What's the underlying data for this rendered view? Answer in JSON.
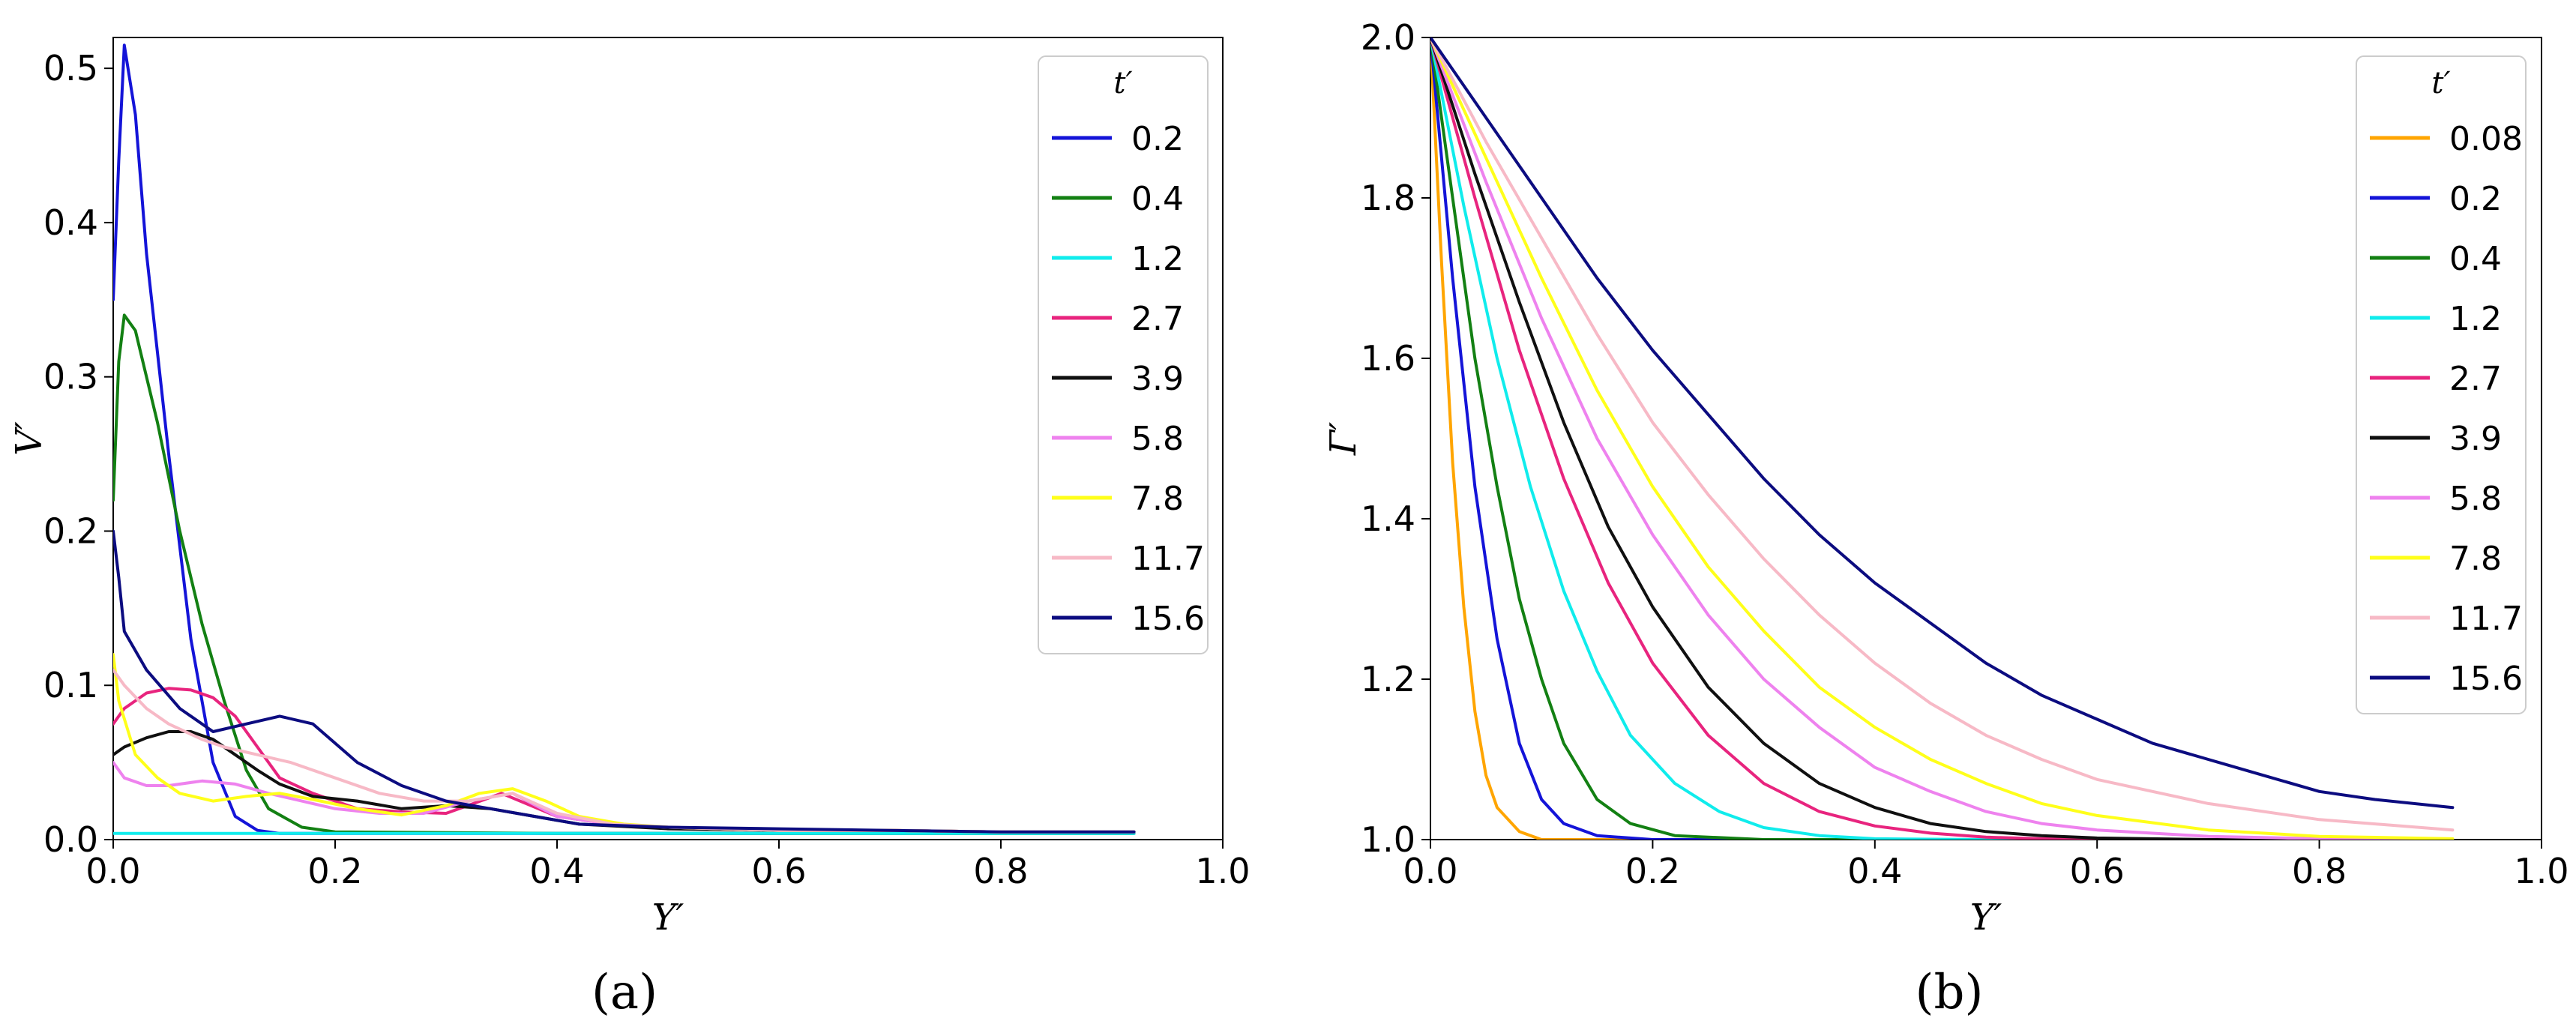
{
  "figure": {
    "panel_labels": {
      "a": "(a)",
      "b": "(b)"
    }
  },
  "chart_data": [
    {
      "type": "line",
      "panel": "(a)",
      "xlabel": "Y′",
      "ylabel": "V′",
      "xlim": [
        0.0,
        1.0
      ],
      "ylim": [
        0.0,
        0.52
      ],
      "xticks": [
        "0.0",
        "0.2",
        "0.4",
        "0.6",
        "0.8",
        "1.0"
      ],
      "xtick_values": [
        0.0,
        0.2,
        0.4,
        0.6,
        0.8,
        1.0
      ],
      "yticks": [
        "0.0",
        "0.1",
        "0.2",
        "0.3",
        "0.4",
        "0.5"
      ],
      "ytick_values": [
        0.0,
        0.1,
        0.2,
        0.3,
        0.4,
        0.5
      ],
      "grid": false,
      "legend": {
        "title": "t′",
        "placement": "top-right"
      },
      "series": [
        {
          "name": "0.2",
          "color": "#1414d8",
          "x": [
            0.0,
            0.005,
            0.01,
            0.02,
            0.03,
            0.05,
            0.07,
            0.09,
            0.11,
            0.13,
            0.15,
            0.2,
            0.4,
            0.6,
            0.8,
            0.92
          ],
          "y": [
            0.35,
            0.44,
            0.515,
            0.47,
            0.38,
            0.25,
            0.13,
            0.05,
            0.015,
            0.006,
            0.004,
            0.004,
            0.004,
            0.004,
            0.004,
            0.004
          ]
        },
        {
          "name": "0.4",
          "color": "#138013",
          "x": [
            0.0,
            0.005,
            0.01,
            0.02,
            0.04,
            0.06,
            0.08,
            0.1,
            0.12,
            0.14,
            0.17,
            0.2,
            0.4,
            0.6,
            0.8,
            0.92
          ],
          "y": [
            0.22,
            0.31,
            0.34,
            0.33,
            0.27,
            0.2,
            0.14,
            0.09,
            0.045,
            0.02,
            0.008,
            0.005,
            0.004,
            0.004,
            0.004,
            0.004
          ]
        },
        {
          "name": "1.2",
          "color": "#10ecec",
          "x": [
            0.0,
            0.1,
            0.3,
            0.5,
            0.7,
            0.92
          ],
          "y": [
            0.004,
            0.004,
            0.004,
            0.004,
            0.004,
            0.004
          ]
        },
        {
          "name": "2.7",
          "color": "#e8247e",
          "x": [
            0.0,
            0.01,
            0.03,
            0.05,
            0.07,
            0.09,
            0.11,
            0.13,
            0.15,
            0.18,
            0.22,
            0.26,
            0.3,
            0.35,
            0.4,
            0.45,
            0.5,
            0.6,
            0.7,
            0.8,
            0.92
          ],
          "y": [
            0.075,
            0.085,
            0.095,
            0.098,
            0.097,
            0.092,
            0.08,
            0.06,
            0.04,
            0.03,
            0.02,
            0.018,
            0.017,
            0.03,
            0.015,
            0.01,
            0.008,
            0.006,
            0.006,
            0.005,
            0.005
          ]
        },
        {
          "name": "3.9",
          "color": "#101010",
          "x": [
            0.0,
            0.01,
            0.03,
            0.05,
            0.07,
            0.09,
            0.11,
            0.13,
            0.15,
            0.18,
            0.22,
            0.26,
            0.3,
            0.34,
            0.38,
            0.42,
            0.5,
            0.6,
            0.7,
            0.8,
            0.92
          ],
          "y": [
            0.055,
            0.06,
            0.066,
            0.07,
            0.07,
            0.065,
            0.055,
            0.045,
            0.036,
            0.028,
            0.025,
            0.02,
            0.022,
            0.02,
            0.015,
            0.01,
            0.007,
            0.006,
            0.006,
            0.005,
            0.005
          ]
        },
        {
          "name": "5.8",
          "color": "#ee82ee",
          "x": [
            0.0,
            0.01,
            0.03,
            0.05,
            0.08,
            0.11,
            0.14,
            0.17,
            0.2,
            0.24,
            0.28,
            0.32,
            0.36,
            0.4,
            0.45,
            0.5,
            0.6,
            0.7,
            0.8,
            0.92
          ],
          "y": [
            0.05,
            0.04,
            0.035,
            0.035,
            0.038,
            0.036,
            0.03,
            0.025,
            0.02,
            0.017,
            0.017,
            0.025,
            0.03,
            0.015,
            0.01,
            0.008,
            0.006,
            0.006,
            0.005,
            0.005
          ]
        },
        {
          "name": "7.8",
          "color": "#ffff1a",
          "x": [
            0.0,
            0.005,
            0.02,
            0.04,
            0.06,
            0.09,
            0.12,
            0.15,
            0.18,
            0.22,
            0.26,
            0.3,
            0.33,
            0.36,
            0.39,
            0.42,
            0.46,
            0.5,
            0.6,
            0.7,
            0.8,
            0.92
          ],
          "y": [
            0.12,
            0.09,
            0.055,
            0.04,
            0.03,
            0.025,
            0.028,
            0.03,
            0.026,
            0.02,
            0.016,
            0.022,
            0.03,
            0.033,
            0.025,
            0.015,
            0.01,
            0.008,
            0.006,
            0.006,
            0.005,
            0.005
          ]
        },
        {
          "name": "11.7",
          "color": "#f7b9c6",
          "x": [
            0.0,
            0.01,
            0.03,
            0.05,
            0.08,
            0.1,
            0.13,
            0.16,
            0.2,
            0.24,
            0.28,
            0.32,
            0.36,
            0.4,
            0.45,
            0.5,
            0.6,
            0.7,
            0.8,
            0.92
          ],
          "y": [
            0.11,
            0.1,
            0.085,
            0.075,
            0.065,
            0.06,
            0.055,
            0.05,
            0.04,
            0.03,
            0.025,
            0.025,
            0.03,
            0.017,
            0.01,
            0.008,
            0.006,
            0.006,
            0.005,
            0.005
          ]
        },
        {
          "name": "15.6",
          "color": "#0c0c80",
          "x": [
            0.0,
            0.005,
            0.01,
            0.03,
            0.06,
            0.09,
            0.12,
            0.15,
            0.18,
            0.22,
            0.26,
            0.3,
            0.34,
            0.38,
            0.42,
            0.5,
            0.6,
            0.7,
            0.8,
            0.92
          ],
          "y": [
            0.2,
            0.17,
            0.135,
            0.11,
            0.085,
            0.07,
            0.075,
            0.08,
            0.075,
            0.05,
            0.035,
            0.025,
            0.02,
            0.015,
            0.01,
            0.008,
            0.007,
            0.006,
            0.005,
            0.005
          ]
        }
      ]
    },
    {
      "type": "line",
      "panel": "(b)",
      "xlabel": "Y′",
      "ylabel": "Γ′",
      "xlim": [
        0.0,
        1.0
      ],
      "ylim": [
        1.0,
        2.0
      ],
      "xticks": [
        "0.0",
        "0.2",
        "0.4",
        "0.6",
        "0.8",
        "1.0"
      ],
      "xtick_values": [
        0.0,
        0.2,
        0.4,
        0.6,
        0.8,
        1.0
      ],
      "yticks": [
        "1.0",
        "1.2",
        "1.4",
        "1.6",
        "1.8",
        "2.0"
      ],
      "ytick_values": [
        1.0,
        1.2,
        1.4,
        1.6,
        1.8,
        2.0
      ],
      "grid": false,
      "legend": {
        "title": "t′",
        "placement": "top-right"
      },
      "series": [
        {
          "name": "0.08",
          "color": "#ffa500",
          "x": [
            0.0,
            0.01,
            0.02,
            0.03,
            0.04,
            0.05,
            0.06,
            0.08,
            0.1,
            0.92
          ],
          "y": [
            2.0,
            1.72,
            1.47,
            1.29,
            1.16,
            1.08,
            1.04,
            1.01,
            1.0,
            1.0
          ]
        },
        {
          "name": "0.2",
          "color": "#1414d8",
          "x": [
            0.0,
            0.02,
            0.04,
            0.06,
            0.08,
            0.1,
            0.12,
            0.15,
            0.2,
            0.92
          ],
          "y": [
            2.0,
            1.7,
            1.44,
            1.25,
            1.12,
            1.05,
            1.02,
            1.005,
            1.0,
            1.0
          ]
        },
        {
          "name": "0.4",
          "color": "#138013",
          "x": [
            0.0,
            0.02,
            0.04,
            0.06,
            0.08,
            0.1,
            0.12,
            0.15,
            0.18,
            0.22,
            0.3,
            0.92
          ],
          "y": [
            2.0,
            1.8,
            1.6,
            1.44,
            1.3,
            1.2,
            1.12,
            1.05,
            1.02,
            1.005,
            1.0,
            1.0
          ]
        },
        {
          "name": "1.2",
          "color": "#10ecec",
          "x": [
            0.0,
            0.03,
            0.06,
            0.09,
            0.12,
            0.15,
            0.18,
            0.22,
            0.26,
            0.3,
            0.35,
            0.4,
            0.5,
            0.92
          ],
          "y": [
            2.0,
            1.79,
            1.6,
            1.44,
            1.31,
            1.21,
            1.13,
            1.07,
            1.035,
            1.015,
            1.005,
            1.001,
            1.0,
            1.0
          ]
        },
        {
          "name": "2.7",
          "color": "#e8247e",
          "x": [
            0.0,
            0.04,
            0.08,
            0.12,
            0.16,
            0.2,
            0.25,
            0.3,
            0.35,
            0.4,
            0.45,
            0.5,
            0.55,
            0.6,
            0.92
          ],
          "y": [
            2.0,
            1.8,
            1.61,
            1.45,
            1.32,
            1.22,
            1.13,
            1.07,
            1.035,
            1.017,
            1.008,
            1.003,
            1.001,
            1.0,
            1.0
          ]
        },
        {
          "name": "3.9",
          "color": "#101010",
          "x": [
            0.0,
            0.04,
            0.08,
            0.12,
            0.16,
            0.2,
            0.25,
            0.3,
            0.35,
            0.4,
            0.45,
            0.5,
            0.55,
            0.6,
            0.7,
            0.92
          ],
          "y": [
            2.0,
            1.83,
            1.67,
            1.52,
            1.39,
            1.29,
            1.19,
            1.12,
            1.07,
            1.04,
            1.02,
            1.01,
            1.005,
            1.002,
            1.0,
            1.0
          ]
        },
        {
          "name": "5.8",
          "color": "#ee82ee",
          "x": [
            0.0,
            0.05,
            0.1,
            0.15,
            0.2,
            0.25,
            0.3,
            0.35,
            0.4,
            0.45,
            0.5,
            0.55,
            0.6,
            0.7,
            0.8,
            0.92
          ],
          "y": [
            2.0,
            1.82,
            1.65,
            1.5,
            1.38,
            1.28,
            1.2,
            1.14,
            1.09,
            1.06,
            1.035,
            1.02,
            1.012,
            1.004,
            1.001,
            1.0
          ]
        },
        {
          "name": "7.8",
          "color": "#ffff1a",
          "x": [
            0.0,
            0.05,
            0.1,
            0.15,
            0.2,
            0.25,
            0.3,
            0.35,
            0.4,
            0.45,
            0.5,
            0.55,
            0.6,
            0.7,
            0.8,
            0.92
          ],
          "y": [
            2.0,
            1.85,
            1.7,
            1.56,
            1.44,
            1.34,
            1.26,
            1.19,
            1.14,
            1.1,
            1.07,
            1.045,
            1.03,
            1.012,
            1.004,
            1.001
          ]
        },
        {
          "name": "11.7",
          "color": "#f7b9c6",
          "x": [
            0.0,
            0.05,
            0.1,
            0.15,
            0.2,
            0.25,
            0.3,
            0.35,
            0.4,
            0.45,
            0.5,
            0.55,
            0.6,
            0.7,
            0.8,
            0.92
          ],
          "y": [
            2.0,
            1.87,
            1.75,
            1.63,
            1.52,
            1.43,
            1.35,
            1.28,
            1.22,
            1.17,
            1.13,
            1.1,
            1.075,
            1.045,
            1.025,
            1.012
          ]
        },
        {
          "name": "15.6",
          "color": "#0c0c80",
          "x": [
            0.0,
            0.05,
            0.1,
            0.15,
            0.2,
            0.25,
            0.3,
            0.35,
            0.4,
            0.45,
            0.5,
            0.55,
            0.6,
            0.65,
            0.7,
            0.75,
            0.8,
            0.85,
            0.92
          ],
          "y": [
            2.0,
            1.9,
            1.8,
            1.7,
            1.61,
            1.53,
            1.45,
            1.38,
            1.32,
            1.27,
            1.22,
            1.18,
            1.15,
            1.12,
            1.1,
            1.08,
            1.06,
            1.05,
            1.04
          ]
        }
      ]
    }
  ]
}
